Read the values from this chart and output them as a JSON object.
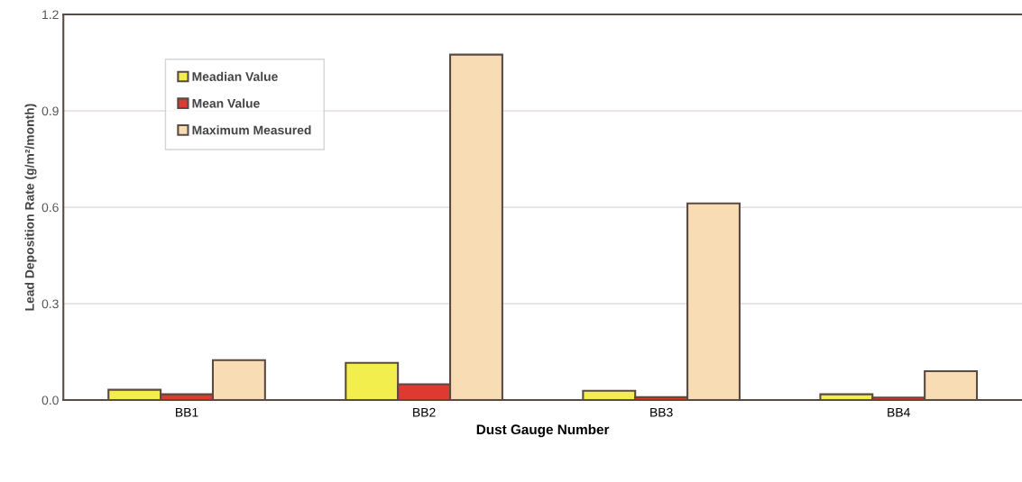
{
  "chart_data": {
    "type": "bar",
    "xlabel": "Dust Gauge Number",
    "ylabel": "Lead Deposition Rate (g/m²/month)",
    "categories": [
      "BB1",
      "BB2",
      "BB3",
      "BB4"
    ],
    "series": [
      {
        "name": "Meadian Value",
        "color": "#f2ee4e",
        "values": [
          0.032,
          0.116,
          0.029,
          0.018
        ]
      },
      {
        "name": "Mean Value",
        "color": "#de3a32",
        "values": [
          0.018,
          0.049,
          0.009,
          0.008
        ]
      },
      {
        "name": "Maximum Measured",
        "color": "#f7dcb4",
        "values": [
          0.124,
          1.075,
          0.612,
          0.09
        ]
      }
    ],
    "ylim": [
      0,
      1.2
    ],
    "yticks": [
      {
        "value": 0,
        "label": "0.0"
      },
      0.3,
      0.6,
      0.9,
      1.2
    ],
    "grid": "y",
    "legend": "top left"
  }
}
